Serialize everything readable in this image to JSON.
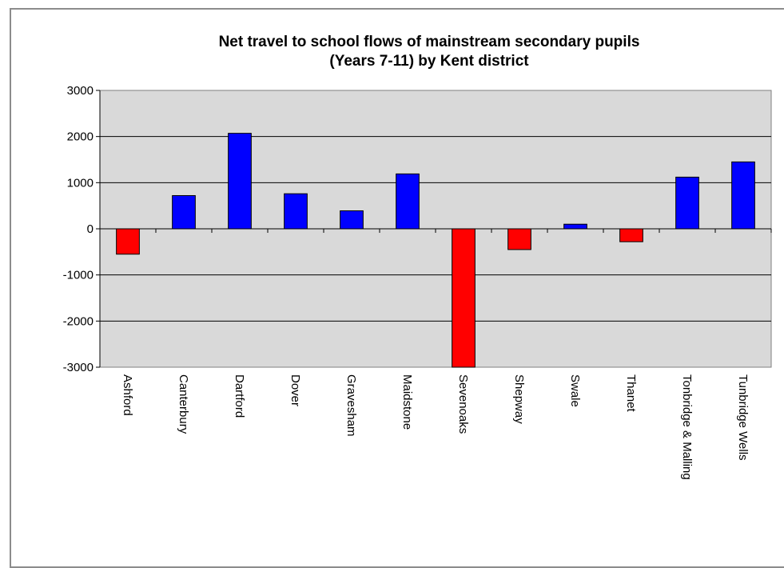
{
  "chart_data": {
    "type": "bar",
    "title": "Net travel to school flows of mainstream secondary pupils",
    "subtitle": "(Years 7-11) by Kent district",
    "xlabel": "",
    "ylabel": "",
    "ylim": [
      -3000,
      3000
    ],
    "yticks": [
      3000,
      2000,
      1000,
      0,
      -1000,
      -2000,
      -3000
    ],
    "grid": true,
    "legend": "none",
    "categories": [
      "Ashford",
      "Canterbury",
      "Dartford",
      "Dover",
      "Gravesham",
      "Maidstone",
      "Sevenoaks",
      "Shepway",
      "Swale",
      "Thanet",
      "Tonbridge & Malling",
      "Tunbridge Wells"
    ],
    "values": [
      -550,
      720,
      2070,
      760,
      390,
      1190,
      -3000,
      -450,
      100,
      -280,
      1120,
      1450
    ],
    "colors": {
      "positive": "#0000ff",
      "negative": "#ff0000",
      "plot_bg": "#d9d9d9",
      "outline": "#000000"
    }
  }
}
